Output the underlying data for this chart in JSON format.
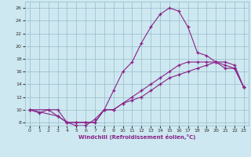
{
  "xlabel": "Windchill (Refroidissement éolien,°C)",
  "background_color": "#cde8f0",
  "line_color": "#882288",
  "grid_color": "#99bbcc",
  "xlim": [
    -0.5,
    23.5
  ],
  "ylim": [
    7.5,
    27
  ],
  "x_ticks": [
    0,
    1,
    2,
    3,
    4,
    5,
    6,
    7,
    8,
    9,
    10,
    11,
    12,
    13,
    14,
    15,
    16,
    17,
    18,
    19,
    20,
    21,
    22,
    23
  ],
  "y_ticks": [
    8,
    10,
    12,
    14,
    16,
    18,
    20,
    22,
    24,
    26
  ],
  "line1_x": [
    0,
    1,
    2,
    3,
    4,
    5,
    6,
    7,
    8,
    9,
    10,
    11,
    12,
    13,
    14,
    15,
    16,
    17,
    18,
    19,
    20,
    21,
    22,
    23
  ],
  "line1_y": [
    10,
    9.5,
    10,
    9,
    8,
    7.5,
    7.5,
    8.5,
    10,
    13,
    16,
    17.5,
    20.5,
    23,
    25,
    26,
    25.5,
    23,
    19,
    18.5,
    17.5,
    16.5,
    16.5,
    13.5
  ],
  "line2_x": [
    0,
    3,
    4,
    5,
    6,
    7,
    8,
    9,
    10,
    11,
    12,
    13,
    14,
    15,
    16,
    17,
    18,
    19,
    20,
    21,
    22,
    23
  ],
  "line2_y": [
    10,
    10,
    8,
    8,
    8,
    8,
    10,
    10,
    11,
    12,
    13,
    14,
    15,
    16,
    17,
    17.5,
    17.5,
    17.5,
    17.5,
    17.5,
    17,
    13.5
  ],
  "line3_x": [
    0,
    3,
    4,
    5,
    6,
    7,
    8,
    9,
    10,
    11,
    12,
    13,
    14,
    15,
    16,
    17,
    18,
    19,
    20,
    21,
    22,
    23
  ],
  "line3_y": [
    10,
    9,
    8,
    8,
    8,
    8,
    10,
    10,
    11,
    11.5,
    12,
    13,
    14,
    15,
    15.5,
    16,
    16.5,
    17,
    17.5,
    17,
    16.5,
    13.5
  ]
}
